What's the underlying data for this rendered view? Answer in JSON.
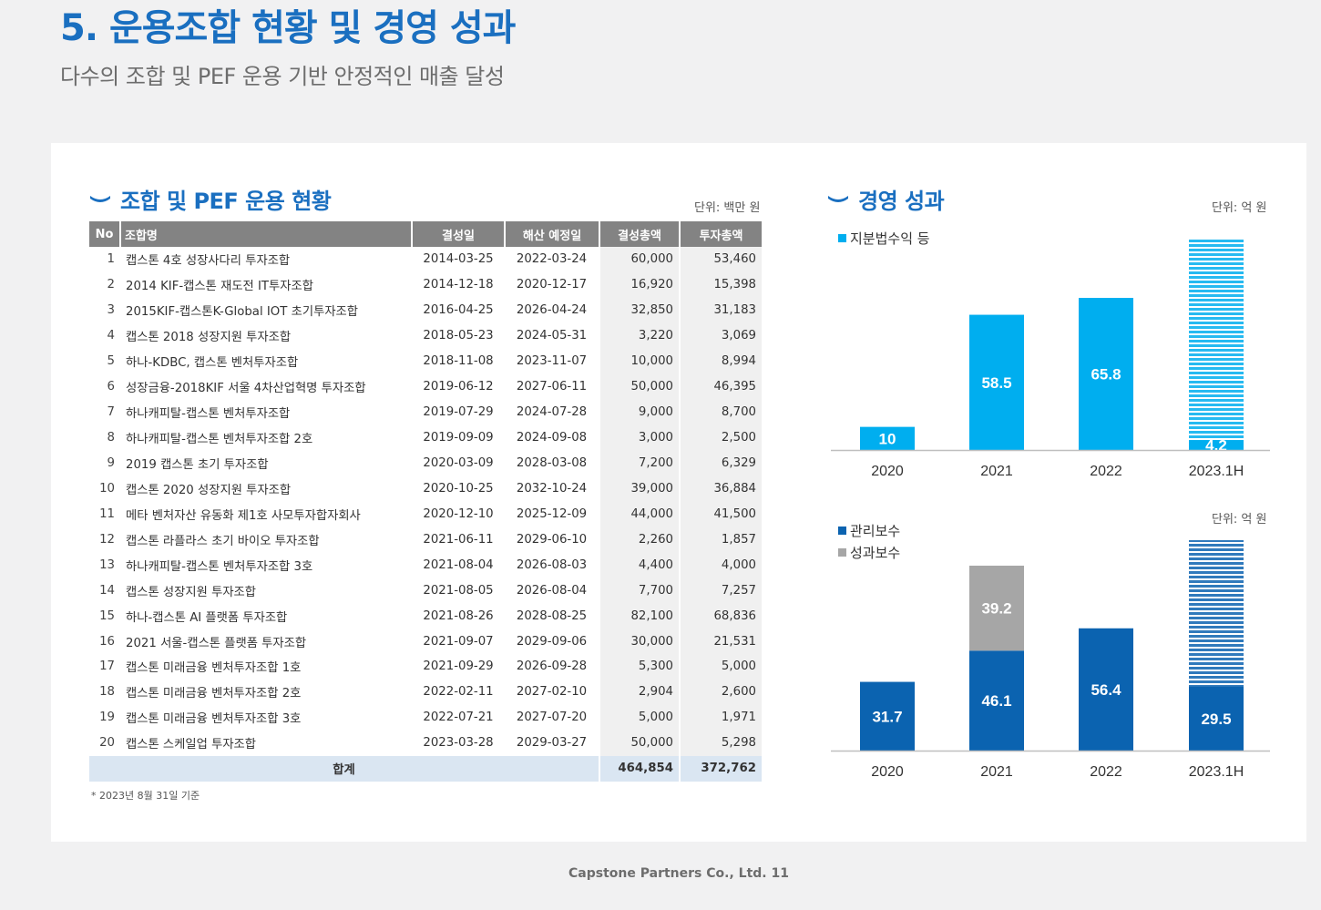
{
  "page": {
    "title": "5. 운용조합 현황 및 경영 성과",
    "subtitle": "다수의 조합 및 PEF 운용 기반 안정적인 매출 달성",
    "footer": "Capstone Partners Co., Ltd. 11"
  },
  "funds": {
    "heading": "조합 및 PEF 운용 현황",
    "unit": "단위: 백만 원",
    "columns": [
      "No",
      "조합명",
      "결성일",
      "해산 예정일",
      "결성총액",
      "투자총액"
    ],
    "rows": [
      [
        "1",
        "캡스톤 4호 성장사다리 투자조합",
        "2014-03-25",
        "2022-03-24",
        "60,000",
        "53,460"
      ],
      [
        "2",
        "2014 KIF-캡스톤 재도전 IT투자조합",
        "2014-12-18",
        "2020-12-17",
        "16,920",
        "15,398"
      ],
      [
        "3",
        "2015KIF-캡스톤K-Global IOT 초기투자조합",
        "2016-04-25",
        "2026-04-24",
        "32,850",
        "31,183"
      ],
      [
        "4",
        "캡스톤 2018 성장지원 투자조합",
        "2018-05-23",
        "2024-05-31",
        "3,220",
        "3,069"
      ],
      [
        "5",
        "하나-KDBC, 캡스톤 벤처투자조합",
        "2018-11-08",
        "2023-11-07",
        "10,000",
        "8,994"
      ],
      [
        "6",
        "성장금융-2018KIF 서울 4차산업혁명 투자조합",
        "2019-06-12",
        "2027-06-11",
        "50,000",
        "46,395"
      ],
      [
        "7",
        "하나캐피탈-캡스톤 벤처투자조합",
        "2019-07-29",
        "2024-07-28",
        "9,000",
        "8,700"
      ],
      [
        "8",
        "하나캐피탈-캡스톤 벤처투자조합 2호",
        "2019-09-09",
        "2024-09-08",
        "3,000",
        "2,500"
      ],
      [
        "9",
        "2019 캡스톤 초기 투자조합",
        "2020-03-09",
        "2028-03-08",
        "7,200",
        "6,329"
      ],
      [
        "10",
        "캡스톤 2020 성장지원 투자조합",
        "2020-10-25",
        "2032-10-24",
        "39,000",
        "36,884"
      ],
      [
        "11",
        "메타 벤처자산 유동화 제1호 사모투자합자회사",
        "2020-12-10",
        "2025-12-09",
        "44,000",
        "41,500"
      ],
      [
        "12",
        "캡스톤 라플라스 초기 바이오 투자조합",
        "2021-06-11",
        "2029-06-10",
        "2,260",
        "1,857"
      ],
      [
        "13",
        "하나캐피탈-캡스톤 벤처투자조합 3호",
        "2021-08-04",
        "2026-08-03",
        "4,400",
        "4,000"
      ],
      [
        "14",
        "캡스톤 성장지원 투자조합",
        "2021-08-05",
        "2026-08-04",
        "7,700",
        "7,257"
      ],
      [
        "15",
        "하나-캡스톤 AI 플랫폼 투자조합",
        "2021-08-26",
        "2028-08-25",
        "82,100",
        "68,836"
      ],
      [
        "16",
        "2021 서울-캡스톤 플랫폼 투자조합",
        "2021-09-07",
        "2029-09-06",
        "30,000",
        "21,531"
      ],
      [
        "17",
        "캡스톤 미래금융 벤처투자조합 1호",
        "2021-09-29",
        "2026-09-28",
        "5,300",
        "5,000"
      ],
      [
        "18",
        "캡스톤 미래금융 벤처투자조합 2호",
        "2022-02-11",
        "2027-02-10",
        "2,904",
        "2,600"
      ],
      [
        "19",
        "캡스톤 미래금융 벤처투자조합 3호",
        "2022-07-21",
        "2027-07-20",
        "5,000",
        "1,971"
      ],
      [
        "20",
        "캡스톤 스케일업 투자조합",
        "2023-03-28",
        "2029-03-27",
        "50,000",
        "5,298"
      ]
    ],
    "total": {
      "label": "합계",
      "commitment": "464,854",
      "invested": "372,762"
    },
    "footnote": "* 2023년 8월 31일 기준"
  },
  "performance": {
    "heading": "경영 성과",
    "unit_top": "단위: 억 원",
    "unit_bottom": "단위: 억 원"
  },
  "colors": {
    "brand": "#1a6fc0",
    "equity": "#00aeef",
    "mgmt": "#0b63b0",
    "perf": "#a6a6a6"
  },
  "chart_data": [
    {
      "type": "bar",
      "categories": [
        "2020",
        "2021",
        "2022",
        "2023.1H"
      ],
      "series": [
        {
          "name": "지분법수익 등",
          "values": [
            10,
            58.5,
            65.8,
            4.2
          ]
        }
      ],
      "ylim": [
        0,
        80
      ],
      "legend": "top-left",
      "note": "2023.1H bar shown with striped projection above actual"
    },
    {
      "type": "bar",
      "stacked": true,
      "categories": [
        "2020",
        "2021",
        "2022",
        "2023.1H"
      ],
      "series": [
        {
          "name": "관리보수",
          "values": [
            31.7,
            46.1,
            56.4,
            29.5
          ]
        },
        {
          "name": "성과보수",
          "values": [
            0,
            39.2,
            0,
            0
          ]
        }
      ],
      "ylim": [
        0,
        100
      ],
      "legend": "top-left",
      "note": "2023.1H bar shown with striped projection above actual"
    }
  ]
}
